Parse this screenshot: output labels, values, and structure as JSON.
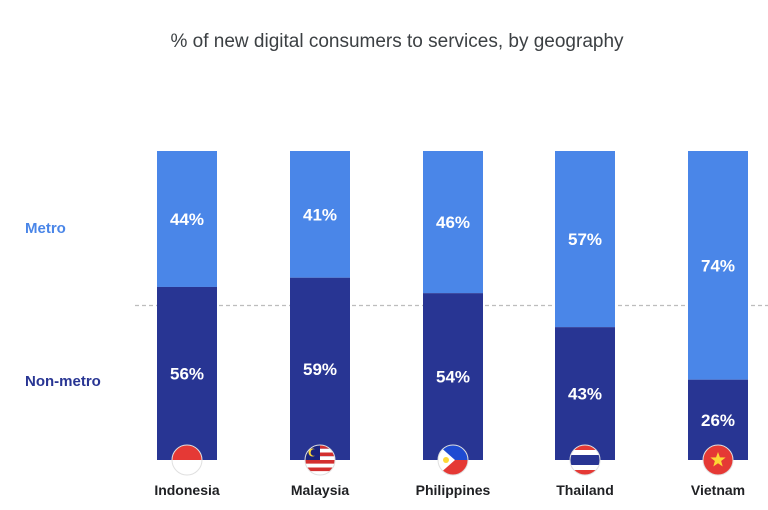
{
  "colors": {
    "metro": "#4a86e8",
    "non_metro": "#283593",
    "divider": "#bdbdbd",
    "title": "#3c4043"
  },
  "chart_data": {
    "type": "bar",
    "stacked": true,
    "normalized": true,
    "title": "% of new digital consumers to services, by geography",
    "xlabel": "",
    "ylabel": "",
    "ylim": [
      0,
      100
    ],
    "grid": false,
    "legend_placement": "left",
    "categories": [
      "Indonesia",
      "Malaysia",
      "Philippines",
      "Thailand",
      "Vietnam"
    ],
    "category_icons": [
      "indonesia-flag-icon",
      "malaysia-flag-icon",
      "philippines-flag-icon",
      "thailand-flag-icon",
      "vietnam-flag-icon"
    ],
    "reference_line": 50,
    "series": [
      {
        "name": "Non-metro",
        "values": [
          56,
          59,
          54,
          43,
          26
        ],
        "labels": [
          "56%",
          "59%",
          "54%",
          "43%",
          "26%"
        ]
      },
      {
        "name": "Metro",
        "values": [
          44,
          41,
          46,
          57,
          74
        ],
        "labels": [
          "44%",
          "41%",
          "46%",
          "57%",
          "74%"
        ]
      }
    ]
  }
}
